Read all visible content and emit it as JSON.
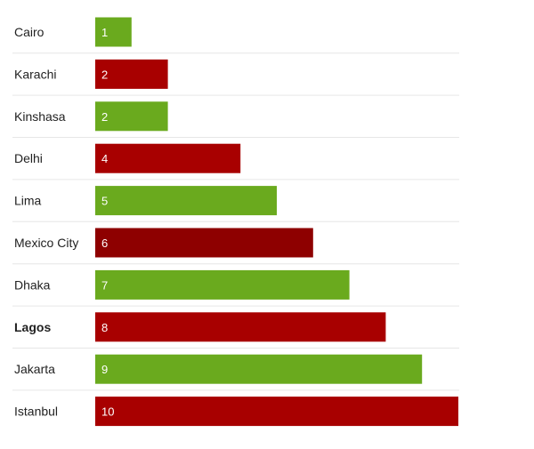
{
  "chart_data": {
    "type": "bar",
    "orientation": "horizontal",
    "categories": [
      "Cairo",
      "Karachi",
      "Kinshasa",
      "Delhi",
      "Lima",
      "Mexico City",
      "Dhaka",
      "Lagos",
      "Jakarta",
      "Istanbul"
    ],
    "values": [
      1,
      2,
      2,
      4,
      5,
      6,
      7,
      8,
      9,
      10
    ],
    "value_labels": [
      "1",
      "2",
      "2",
      "4",
      "5",
      "6",
      "7",
      "8",
      "9",
      "10"
    ],
    "bar_colors": [
      "#6aaa1e",
      "#a80000",
      "#6aaa1e",
      "#a80000",
      "#6aaa1e",
      "#8e0000",
      "#6aaa1e",
      "#a80000",
      "#6aaa1e",
      "#a80000"
    ],
    "bold_categories": [
      "Lagos"
    ],
    "title": "",
    "xlabel": "",
    "ylabel": "",
    "xlim": [
      0,
      10
    ],
    "grid": false,
    "legend": "none"
  }
}
